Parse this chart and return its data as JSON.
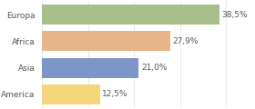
{
  "categories": [
    "Europa",
    "Africa",
    "Asia",
    "America"
  ],
  "values": [
    38.5,
    27.9,
    21.0,
    12.5
  ],
  "labels": [
    "38,5%",
    "27,9%",
    "21,0%",
    "12,5%"
  ],
  "bar_colors": [
    "#a8bf8a",
    "#e8b48a",
    "#7d96c8",
    "#f5d57a"
  ],
  "background_color": "#ffffff",
  "xlim": [
    0,
    46
  ],
  "bar_height": 0.75,
  "label_fontsize": 6.5,
  "category_fontsize": 6.5,
  "text_color": "#555555",
  "grid_color": "#e0e0e0"
}
